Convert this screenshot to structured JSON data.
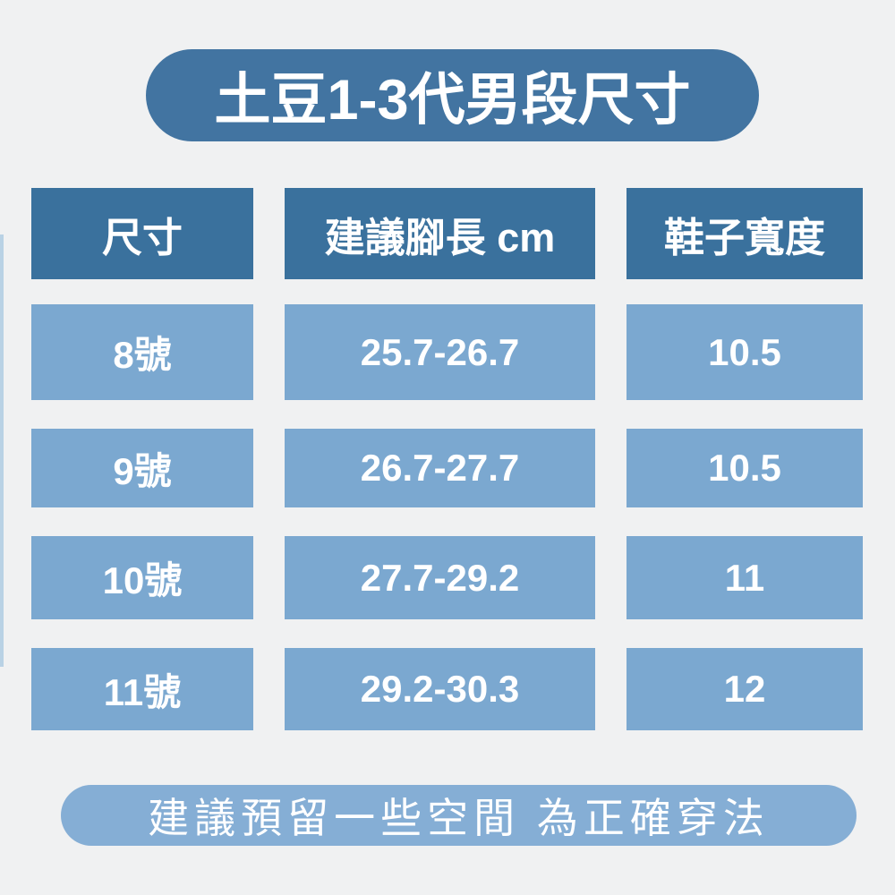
{
  "title": "土豆1-3代男段尺寸",
  "colors": {
    "background": "#f0f1f2",
    "title_bg": "#4274a1",
    "header_bg": "#3a719d",
    "row_bg": "#7ba8d0",
    "footer_bg": "#85aed5",
    "text": "#ffffff",
    "left_strip": "#b9d2e5"
  },
  "table": {
    "headers": [
      "尺寸",
      "建議腳長 cm",
      "鞋子寬度"
    ],
    "rows": [
      {
        "size": "8號",
        "foot_length": "25.7-26.7",
        "width": "10.5"
      },
      {
        "size": "9號",
        "foot_length": "26.7-27.7",
        "width": "10.5"
      },
      {
        "size": "10號",
        "foot_length": "27.7-29.2",
        "width": "11"
      },
      {
        "size": "11號",
        "foot_length": "29.2-30.3",
        "width": "12"
      }
    ]
  },
  "footer": {
    "note": "建議預留一些空間 為正確穿法"
  },
  "chart_data": {
    "type": "table",
    "title": "土豆1-3代男段尺寸",
    "columns": [
      "尺寸",
      "建議腳長 cm",
      "鞋子寬度"
    ],
    "rows": [
      [
        "8號",
        "25.7-26.7",
        "10.5"
      ],
      [
        "9號",
        "26.7-27.7",
        "10.5"
      ],
      [
        "10號",
        "27.7-29.2",
        "11"
      ],
      [
        "11號",
        "29.2-30.3",
        "12"
      ]
    ],
    "note": "建議預留一些空間 為正確穿法"
  }
}
